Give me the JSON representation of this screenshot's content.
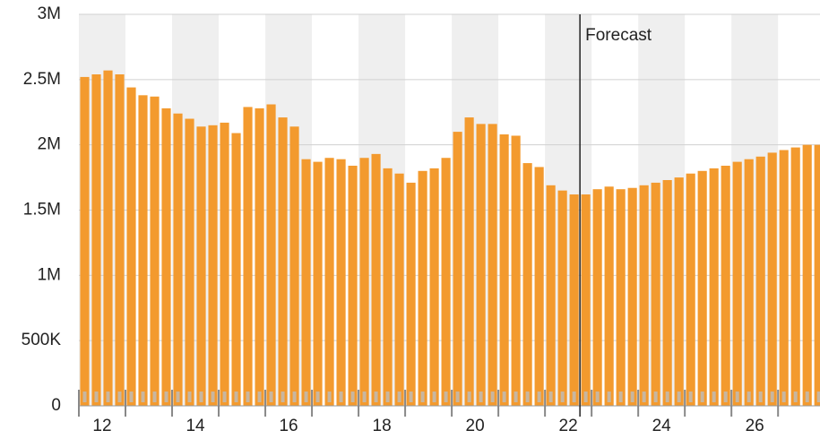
{
  "chart_data": {
    "type": "bar",
    "color": "#f39a2e",
    "band_color": "#efefef",
    "x": [
      11.625,
      11.875,
      12.125,
      12.375,
      12.625,
      12.875,
      13.125,
      13.375,
      13.625,
      13.875,
      14.125,
      14.375,
      14.625,
      14.875,
      15.125,
      15.375,
      15.625,
      15.875,
      16.125,
      16.375,
      16.625,
      16.875,
      17.125,
      17.375,
      17.625,
      17.875,
      18.125,
      18.375,
      18.625,
      18.875,
      19.125,
      19.375,
      19.625,
      19.875,
      20.125,
      20.375,
      20.625,
      20.875,
      21.125,
      21.375,
      21.625,
      21.875,
      22.125,
      22.375,
      22.625,
      22.875,
      23.125,
      23.375,
      23.625,
      23.875,
      24.125,
      24.375,
      24.625,
      24.875,
      25.125,
      25.375,
      25.625,
      25.875,
      26.125,
      26.375,
      26.625,
      26.875,
      27.125,
      27.375
    ],
    "values": [
      2520000,
      2540000,
      2570000,
      2540000,
      2440000,
      2380000,
      2370000,
      2280000,
      2240000,
      2200000,
      2140000,
      2150000,
      2170000,
      2090000,
      2290000,
      2280000,
      2310000,
      2210000,
      2140000,
      1890000,
      1870000,
      1900000,
      1890000,
      1840000,
      1900000,
      1930000,
      1820000,
      1780000,
      1710000,
      1800000,
      1820000,
      1900000,
      2100000,
      2210000,
      2160000,
      2160000,
      2080000,
      2070000,
      1860000,
      1830000,
      1690000,
      1650000,
      1620000,
      1620000,
      1660000,
      1680000,
      1660000,
      1670000,
      1690000,
      1710000,
      1730000,
      1750000,
      1780000,
      1800000,
      1820000,
      1840000,
      1870000,
      1890000,
      1910000,
      1940000,
      1960000,
      1980000,
      2000000,
      2000000
    ],
    "xlim": [
      11.5,
      27.4
    ],
    "xticks": [
      12,
      14,
      16,
      18,
      20,
      22,
      24,
      26
    ],
    "ylim": [
      0,
      3000000
    ],
    "yticks": [
      0,
      {
        "value": 500000,
        "label": "500K"
      },
      {
        "value": 1000000,
        "label": "1M"
      },
      {
        "value": 1500000,
        "label": "1.5M"
      },
      {
        "value": 2000000,
        "label": "2M"
      },
      {
        "value": 2500000,
        "label": "2.5M"
      },
      {
        "value": 3000000,
        "label": "3M"
      }
    ],
    "grid": true,
    "annotation": {
      "x": 22.25,
      "text": "Forecast"
    }
  }
}
